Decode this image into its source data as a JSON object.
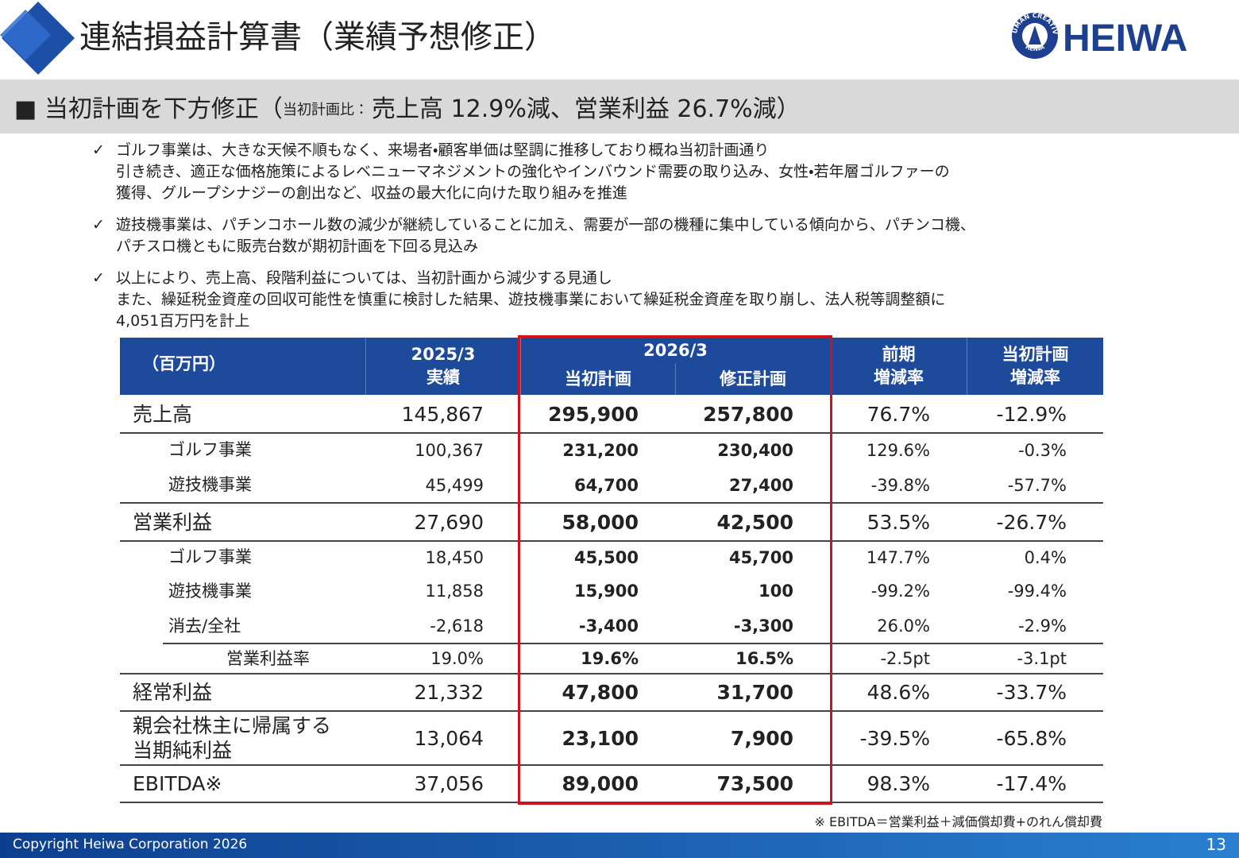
{
  "header": {
    "title": "連結損益計算書（業績予想修正）",
    "logo": "HEIWA",
    "logo_ring_top": "HUMAN CREATIVE",
    "logo_ring_bottom": "HEIWA"
  },
  "banner": {
    "lead": "■ 当初計画を下方修正（",
    "small": "当初計画比：",
    "main": "売上高 12.9%減、営業利益 26.7%減）"
  },
  "bullets": [
    {
      "marker": "✓",
      "lines": [
        "ゴルフ事業は、大きな天候不順もなく、来場者・顧客単価は堅調に推移しており概ね当初計画通り",
        "引き続き、適正な価格施策によるレベニューマネジメントの強化やインバウンド需要の取り込み、女性・若年層ゴルファーの",
        "獲得、グループシナジーの創出など、収益の最大化に向けた取り組みを推進"
      ]
    },
    {
      "marker": "✓",
      "lines": [
        "遊技機事業は、パチンコホール数の減少が継続していることに加え、需要が一部の機種に集中している傾向から、パチンコ機、",
        "パチスロ機ともに販売台数が期初計画を下回る見込み"
      ]
    },
    {
      "marker": "✓",
      "lines": [
        "以上により、売上高、段階利益については、当初計画から減少する見通し",
        "また、繰延税金資産の回収可能性を慎重に検討した結果、遊技機事業において繰延税金資産を取り崩し、法人税等調整額に",
        "4,051百万円を計上"
      ]
    }
  ],
  "table": {
    "unit": "（百万円）",
    "columns": [
      [
        "2025/3",
        "実績"
      ],
      {
        "group": "2026/3",
        "sub": [
          "当初計画",
          "修正計画"
        ]
      },
      [
        "前期",
        "増減率"
      ],
      [
        "当初計画",
        "増減率"
      ]
    ],
    "rows": [
      {
        "label": [
          "売上高"
        ],
        "values": [
          "145,867",
          "295,900",
          "257,800",
          "76.7%",
          "-12.9%"
        ]
      },
      {
        "label": [
          "ゴルフ事業"
        ],
        "values": [
          "100,367",
          "231,200",
          "230,400",
          "129.6%",
          "-0.3%"
        ]
      },
      {
        "label": [
          "遊技機事業"
        ],
        "values": [
          "45,499",
          "64,700",
          "27,400",
          "-39.8%",
          "-57.7%"
        ]
      },
      {
        "label": [
          "営業利益"
        ],
        "values": [
          "27,690",
          "58,000",
          "42,500",
          "53.5%",
          "-26.7%"
        ]
      },
      {
        "label": [
          "ゴルフ事業"
        ],
        "values": [
          "18,450",
          "45,500",
          "45,700",
          "147.7%",
          "0.4%"
        ]
      },
      {
        "label": [
          "遊技機事業"
        ],
        "values": [
          "11,858",
          "15,900",
          "100",
          "-99.2%",
          "-99.4%"
        ]
      },
      {
        "label": [
          "消去/全社"
        ],
        "values": [
          "-2,618",
          "-3,400",
          "-3,300",
          "26.0%",
          "-2.9%"
        ]
      },
      {
        "label": [
          "営業利益率"
        ],
        "values": [
          "19.0%",
          "19.6%",
          "16.5%",
          "-2.5pt",
          "-3.1pt"
        ]
      },
      {
        "label": [
          "経常利益"
        ],
        "values": [
          "21,332",
          "47,800",
          "31,700",
          "48.6%",
          "-33.7%"
        ]
      },
      {
        "label": [
          "親会社株主に帰属する",
          "当期純利益"
        ],
        "values": [
          "13,064",
          "23,100",
          "7,900",
          "-39.5%",
          "-65.8%"
        ]
      },
      {
        "label": [
          "EBITDA※"
        ],
        "values": [
          "37,056",
          "89,000",
          "73,500",
          "98.3%",
          "-17.4%"
        ]
      }
    ],
    "footnote": "※ EBITDA＝営業利益＋減価償却費+のれん償却費"
  },
  "footer": {
    "copyright": "Copyright  Heiwa Corporation  2026",
    "page": "13"
  }
}
